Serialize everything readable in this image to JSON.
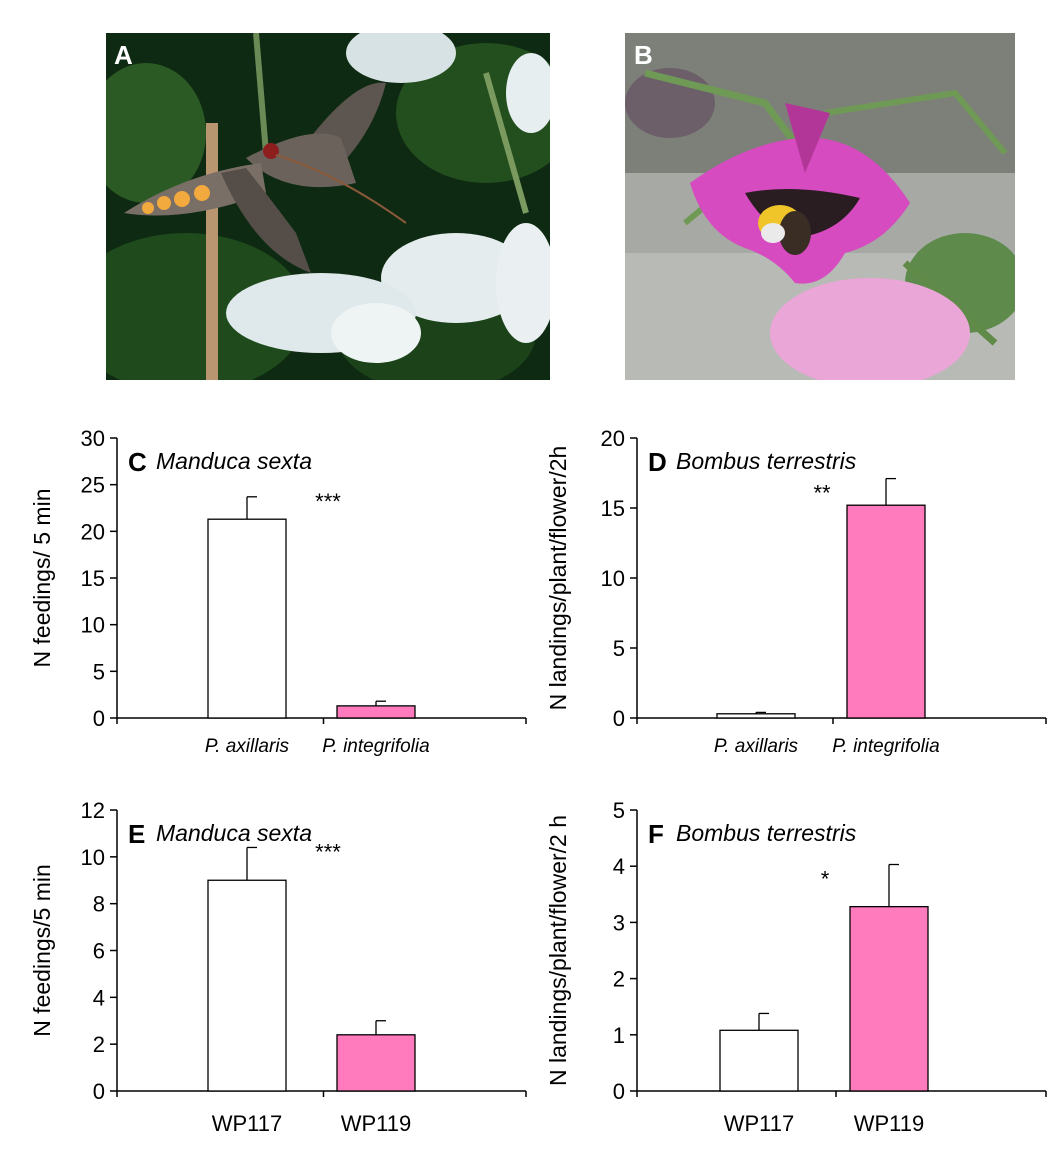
{
  "photos": [
    {
      "label": "A",
      "subject": "hawkmoth feeding on white petunia flower at night"
    },
    {
      "label": "B",
      "subject": "bumblebee visiting pink petunia flower"
    }
  ],
  "colors": {
    "white_bar": "#ffffff",
    "pink_bar": "#ff7bbd",
    "axis": "#000000"
  },
  "chart_data": [
    {
      "panel": "C",
      "type": "bar",
      "species": "Manduca sexta",
      "categories": [
        "P. axillaris",
        "P. integrifolia"
      ],
      "category_italic": true,
      "values": [
        21.3,
        1.3
      ],
      "errors": [
        2.4,
        0.5
      ],
      "ylabel": "N feedings/ 5 min",
      "ylim": [
        0,
        30
      ],
      "yticks": [
        0,
        5,
        10,
        15,
        20,
        25,
        30
      ],
      "significance": "***",
      "significance_over": 0
    },
    {
      "panel": "D",
      "type": "bar",
      "species": "Bombus terrestris",
      "categories": [
        "P. axillaris",
        "P. integrifolia"
      ],
      "category_italic": true,
      "values": [
        0.3,
        15.2
      ],
      "errors": [
        0.1,
        1.9
      ],
      "ylabel": "N landings/plant/flower/2h",
      "ylim": [
        0,
        20
      ],
      "yticks": [
        0,
        5,
        10,
        15,
        20
      ],
      "significance": "**",
      "significance_over": 1
    },
    {
      "panel": "E",
      "type": "bar",
      "species": "Manduca sexta",
      "categories": [
        "WP117",
        "WP119"
      ],
      "category_italic": false,
      "values": [
        9.0,
        2.4
      ],
      "errors": [
        1.4,
        0.6
      ],
      "ylabel": "N feedings/5 min",
      "ylim": [
        0,
        12
      ],
      "yticks": [
        0,
        2,
        4,
        6,
        8,
        10,
        12
      ],
      "significance": "***",
      "significance_over": 0
    },
    {
      "panel": "F",
      "type": "bar",
      "species": "Bombus terrestris",
      "categories": [
        "WP117",
        "WP119"
      ],
      "category_italic": false,
      "values": [
        1.08,
        3.28
      ],
      "errors": [
        0.3,
        0.75
      ],
      "ylabel": "N landings/plant/flower/2 h",
      "ylim": [
        0,
        5
      ],
      "yticks": [
        0,
        1,
        2,
        3,
        4,
        5
      ],
      "significance": "*",
      "significance_over": 1
    }
  ]
}
